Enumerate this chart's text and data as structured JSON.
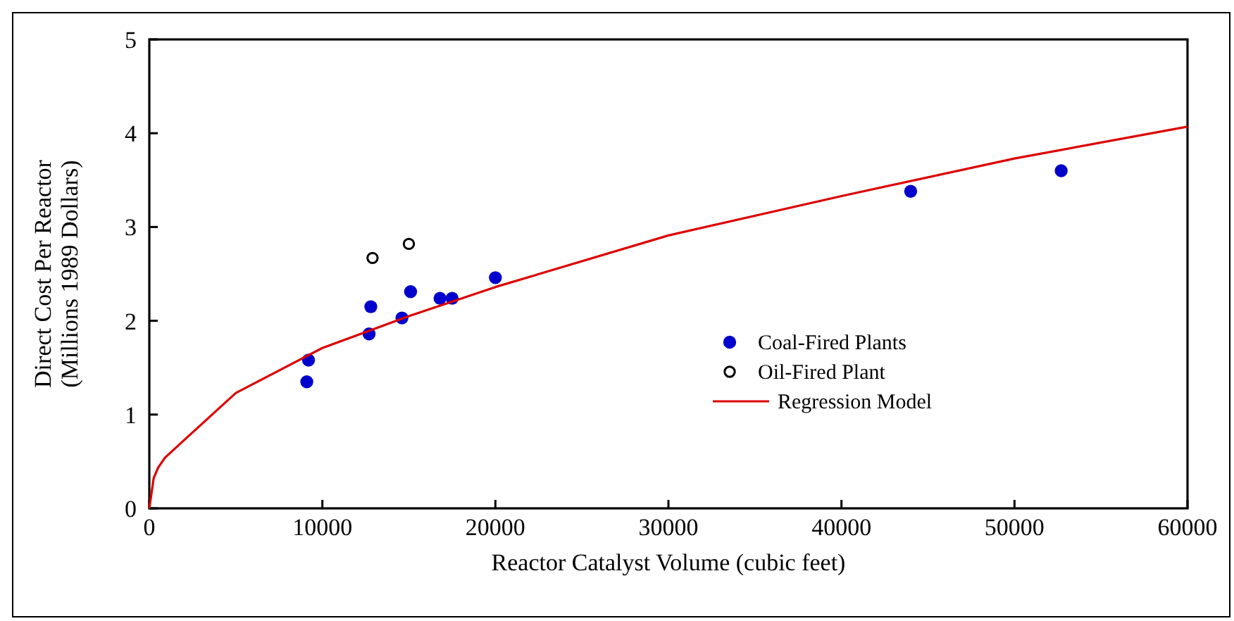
{
  "chart_data": {
    "type": "scatter",
    "xlabel": "Reactor Catalyst Volume (cubic feet)",
    "ylabel": "Direct Cost Per Reactor\n(Millions 1989 Dollars)",
    "xlim": [
      0,
      60000
    ],
    "xticks": [
      0,
      10000,
      20000,
      30000,
      40000,
      50000,
      60000
    ],
    "ylim": [
      0,
      5
    ],
    "yticks": [
      0,
      1,
      2,
      3,
      4,
      5
    ],
    "grid": false,
    "legend": "right",
    "marker": "circle",
    "series": [
      {
        "name": "Coal-Fired Plants",
        "color": "#0000cc",
        "x": [
          9100,
          9200,
          12700,
          12800,
          14600,
          15100,
          16800,
          17500,
          20000,
          44000,
          52700
        ],
        "values": [
          1.35,
          1.58,
          1.86,
          2.15,
          2.03,
          2.31,
          2.24,
          2.24,
          2.46,
          3.38,
          3.6
        ]
      },
      {
        "name": "Oil-Fired Plant",
        "color": "#000000",
        "x": [
          12900,
          15000
        ],
        "values": [
          2.67,
          2.82
        ]
      },
      {
        "name": "Regression Model",
        "type": "line",
        "color": "#dd0000",
        "marker": "none",
        "x": [
          0,
          250,
          500,
          900,
          5000,
          10000,
          15000,
          20000,
          30000,
          40000,
          50000,
          60000
        ],
        "values": [
          0,
          0.32,
          0.43,
          0.54,
          1.23,
          1.71,
          2.05,
          2.36,
          2.91,
          3.33,
          3.73,
          4.07
        ]
      }
    ]
  }
}
